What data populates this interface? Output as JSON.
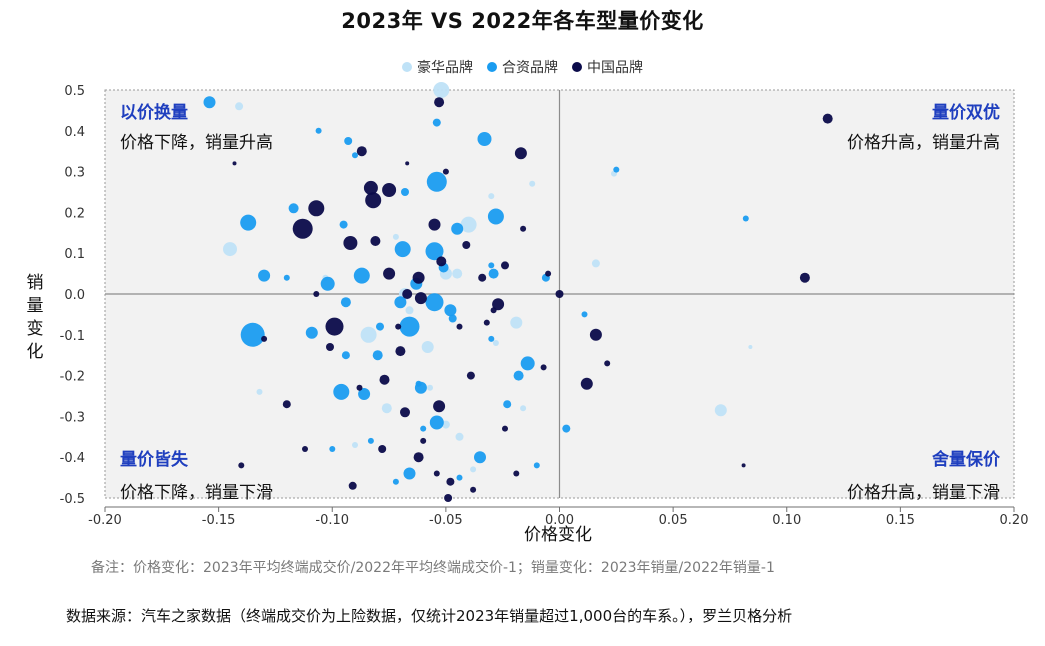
{
  "title": "2023年 VS 2022年各车型量价变化",
  "legend": [
    {
      "label": "豪华品牌",
      "color": "#bfe2f7"
    },
    {
      "label": "合资品牌",
      "color": "#1a9cf0"
    },
    {
      "label": "中国品牌",
      "color": "#0b0b4a"
    }
  ],
  "quadrants": {
    "top_left": {
      "title": "以价换量",
      "subtitle": "价格下降，销量升高"
    },
    "top_right": {
      "title": "量价双优",
      "subtitle": "价格升高，销量升高"
    },
    "bottom_left": {
      "title": "量价皆失",
      "subtitle": "价格下降，销量下滑"
    },
    "bottom_right": {
      "title": "舍量保价",
      "subtitle": "价格升高，销量下滑"
    }
  },
  "note": "备注：价格变化：2023年平均终端成交价/2022年平均终端成交价-1；销量变化：2023年销量/2022年销量-1",
  "source": "数据来源：汽车之家数据（终端成交价为上险数据，仅统计2023年销量超过1,000台的车系。），罗兰贝格分析",
  "chart_data": {
    "type": "scatter",
    "title": "2023年 VS 2022年各车型量价变化",
    "xlabel": "价格变化",
    "ylabel": "销量变化",
    "xlim": [
      -0.2,
      0.2
    ],
    "ylim": [
      -0.5,
      0.5
    ],
    "x_ticks": [
      "-0.20",
      "-0.15",
      "-0.10",
      "-0.05",
      "0.00",
      "0.05",
      "0.10",
      "0.15",
      "0.20"
    ],
    "y_ticks": [
      "0.5",
      "0.4",
      "0.3",
      "0.2",
      "0.1",
      "0.0",
      "-0.1",
      "-0.2",
      "-0.3",
      "-0.4",
      "-0.5"
    ],
    "grid": false,
    "legend_position": "top-center",
    "series": [
      {
        "name": "豪华品牌",
        "color": "#bfe2f7",
        "points": [
          [
            -0.052,
            0.5,
            8
          ],
          [
            -0.141,
            0.46,
            4
          ],
          [
            -0.145,
            0.11,
            7
          ],
          [
            -0.04,
            0.17,
            8
          ],
          [
            -0.045,
            0.05,
            5
          ],
          [
            -0.05,
            0.05,
            6
          ],
          [
            -0.068,
            0.0,
            6
          ],
          [
            -0.084,
            -0.1,
            8
          ],
          [
            -0.058,
            -0.13,
            6
          ],
          [
            -0.076,
            -0.28,
            5
          ],
          [
            -0.019,
            -0.07,
            6
          ],
          [
            0.071,
            -0.285,
            6
          ],
          [
            0.016,
            0.075,
            4
          ],
          [
            -0.012,
            0.27,
            3
          ],
          [
            0.024,
            0.295,
            3
          ],
          [
            -0.05,
            -0.32,
            4
          ],
          [
            -0.044,
            -0.35,
            4
          ],
          [
            -0.038,
            -0.43,
            3
          ],
          [
            -0.132,
            -0.24,
            3
          ],
          [
            -0.09,
            -0.37,
            3
          ],
          [
            -0.028,
            -0.12,
            3
          ],
          [
            -0.066,
            -0.04,
            4
          ],
          [
            -0.072,
            0.14,
            3
          ],
          [
            -0.103,
            0.04,
            3
          ],
          [
            -0.03,
            0.24,
            3
          ],
          [
            -0.016,
            -0.28,
            3
          ],
          [
            0.084,
            -0.13,
            2
          ],
          [
            -0.057,
            -0.23,
            3
          ]
        ]
      },
      {
        "name": "合资品牌",
        "color": "#1a9cf0",
        "points": [
          [
            -0.154,
            0.47,
            6
          ],
          [
            -0.135,
            -0.1,
            12
          ],
          [
            -0.054,
            0.275,
            10
          ],
          [
            -0.033,
            0.38,
            7
          ],
          [
            -0.137,
            0.175,
            8
          ],
          [
            -0.069,
            0.11,
            8
          ],
          [
            -0.117,
            0.21,
            5
          ],
          [
            -0.13,
            0.045,
            6
          ],
          [
            -0.055,
            0.105,
            9
          ],
          [
            -0.087,
            0.045,
            8
          ],
          [
            -0.028,
            0.19,
            8
          ],
          [
            -0.045,
            0.16,
            6
          ],
          [
            -0.029,
            0.05,
            5
          ],
          [
            -0.102,
            0.025,
            7
          ],
          [
            -0.063,
            0.025,
            6
          ],
          [
            -0.051,
            0.065,
            5
          ],
          [
            -0.055,
            -0.02,
            9
          ],
          [
            -0.066,
            -0.08,
            10
          ],
          [
            -0.07,
            -0.02,
            6
          ],
          [
            -0.048,
            -0.04,
            6
          ],
          [
            -0.094,
            -0.02,
            5
          ],
          [
            -0.109,
            -0.095,
            6
          ],
          [
            -0.096,
            -0.24,
            8
          ],
          [
            -0.086,
            -0.245,
            6
          ],
          [
            -0.061,
            -0.23,
            6
          ],
          [
            -0.018,
            -0.2,
            5
          ],
          [
            -0.014,
            -0.17,
            7
          ],
          [
            -0.054,
            -0.315,
            7
          ],
          [
            -0.066,
            -0.44,
            6
          ],
          [
            -0.035,
            -0.4,
            6
          ],
          [
            -0.106,
            0.4,
            3
          ],
          [
            -0.093,
            0.375,
            4
          ],
          [
            0.003,
            -0.33,
            4
          ],
          [
            0.011,
            -0.05,
            3
          ],
          [
            0.082,
            0.185,
            3
          ],
          [
            0.025,
            0.305,
            3
          ],
          [
            -0.09,
            0.34,
            3
          ],
          [
            -0.054,
            0.42,
            4
          ],
          [
            -0.068,
            0.25,
            4
          ],
          [
            -0.095,
            0.17,
            4
          ],
          [
            -0.079,
            -0.08,
            4
          ],
          [
            -0.094,
            -0.15,
            4
          ],
          [
            -0.08,
            -0.15,
            5
          ],
          [
            -0.062,
            -0.22,
            3
          ],
          [
            -0.047,
            -0.06,
            4
          ],
          [
            -0.03,
            -0.11,
            3
          ],
          [
            -0.006,
            0.04,
            4
          ],
          [
            -0.023,
            -0.27,
            4
          ],
          [
            -0.1,
            -0.38,
            3
          ],
          [
            -0.083,
            -0.36,
            3
          ],
          [
            -0.03,
            0.07,
            3
          ],
          [
            -0.12,
            0.04,
            3
          ],
          [
            -0.06,
            -0.33,
            3
          ],
          [
            -0.044,
            -0.45,
            3
          ],
          [
            -0.072,
            -0.46,
            3
          ],
          [
            -0.01,
            -0.42,
            3
          ]
        ]
      },
      {
        "name": "中国品牌",
        "color": "#0b0b4a",
        "points": [
          [
            0.118,
            0.43,
            5
          ],
          [
            0.108,
            0.04,
            5
          ],
          [
            -0.113,
            0.16,
            10
          ],
          [
            -0.107,
            0.21,
            8
          ],
          [
            -0.082,
            0.23,
            8
          ],
          [
            -0.083,
            0.26,
            7
          ],
          [
            -0.075,
            0.255,
            7
          ],
          [
            -0.092,
            0.125,
            7
          ],
          [
            -0.075,
            0.05,
            6
          ],
          [
            -0.062,
            0.04,
            6
          ],
          [
            -0.055,
            0.17,
            6
          ],
          [
            -0.052,
            0.08,
            5
          ],
          [
            -0.067,
            0.0,
            5
          ],
          [
            -0.099,
            -0.08,
            9
          ],
          [
            -0.027,
            -0.025,
            6
          ],
          [
            -0.017,
            0.345,
            6
          ],
          [
            -0.087,
            0.35,
            5
          ],
          [
            -0.081,
            0.13,
            5
          ],
          [
            -0.053,
            0.47,
            5
          ],
          [
            -0.061,
            -0.01,
            6
          ],
          [
            -0.053,
            -0.275,
            6
          ],
          [
            0.016,
            -0.1,
            6
          ],
          [
            0.012,
            -0.22,
            6
          ],
          [
            0.0,
            0.0,
            4
          ],
          [
            -0.07,
            -0.14,
            5
          ],
          [
            -0.077,
            -0.21,
            5
          ],
          [
            -0.062,
            -0.4,
            5
          ],
          [
            -0.068,
            -0.29,
            5
          ],
          [
            -0.041,
            0.12,
            4
          ],
          [
            -0.034,
            0.04,
            4
          ],
          [
            -0.024,
            0.07,
            4
          ],
          [
            -0.039,
            -0.2,
            4
          ],
          [
            -0.101,
            -0.13,
            4
          ],
          [
            -0.078,
            -0.38,
            4
          ],
          [
            -0.048,
            -0.46,
            4
          ],
          [
            -0.091,
            -0.47,
            4
          ],
          [
            -0.06,
            -0.36,
            3
          ],
          [
            -0.032,
            -0.07,
            3
          ],
          [
            -0.024,
            -0.33,
            3
          ],
          [
            -0.007,
            -0.18,
            3
          ],
          [
            -0.088,
            -0.23,
            3
          ],
          [
            -0.12,
            -0.27,
            4
          ],
          [
            -0.13,
            -0.11,
            3
          ],
          [
            -0.05,
            0.3,
            3
          ],
          [
            -0.016,
            0.16,
            3
          ],
          [
            -0.005,
            0.05,
            3
          ],
          [
            0.021,
            -0.17,
            3
          ],
          [
            -0.071,
            -0.08,
            3
          ],
          [
            -0.044,
            -0.08,
            3
          ],
          [
            -0.038,
            -0.48,
            3
          ],
          [
            -0.054,
            -0.44,
            3
          ],
          [
            -0.112,
            -0.38,
            3
          ],
          [
            -0.14,
            -0.42,
            3
          ],
          [
            -0.143,
            0.32,
            2
          ],
          [
            -0.067,
            0.32,
            2
          ],
          [
            -0.029,
            -0.04,
            3
          ],
          [
            -0.049,
            -0.5,
            4
          ],
          [
            -0.107,
            0.0,
            3
          ],
          [
            -0.019,
            -0.44,
            3
          ],
          [
            0.081,
            -0.42,
            2
          ]
        ]
      }
    ]
  }
}
